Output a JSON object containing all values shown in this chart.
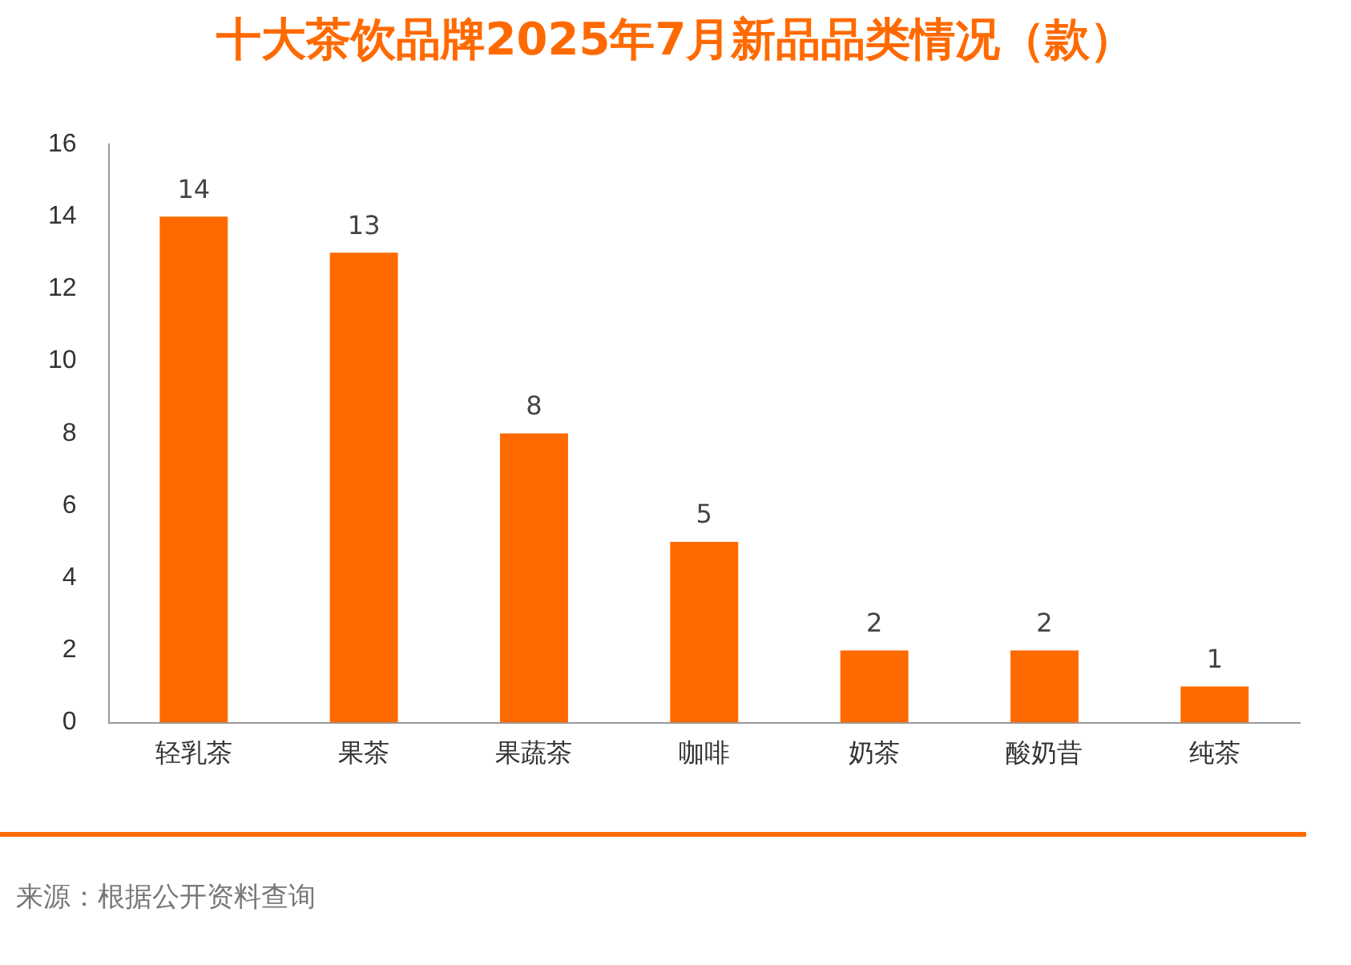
{
  "chart_data": {
    "type": "bar",
    "title": "十大茶饮品牌2025年7月新品品类情况（款）",
    "categories": [
      "轻乳茶",
      "果茶",
      "果蔬茶",
      "咖啡",
      "奶茶",
      "酸奶昔",
      "纯茶"
    ],
    "values": [
      14,
      13,
      8,
      5,
      2,
      2,
      1
    ],
    "color": "#ff6a00",
    "ylim": [
      0,
      16
    ],
    "yticks": [
      0,
      2,
      4,
      6,
      8,
      10,
      12,
      14,
      16
    ],
    "grid": false,
    "data_labels": true,
    "legend": false,
    "annotations": [
      "来源：根据公开资料查询"
    ]
  }
}
